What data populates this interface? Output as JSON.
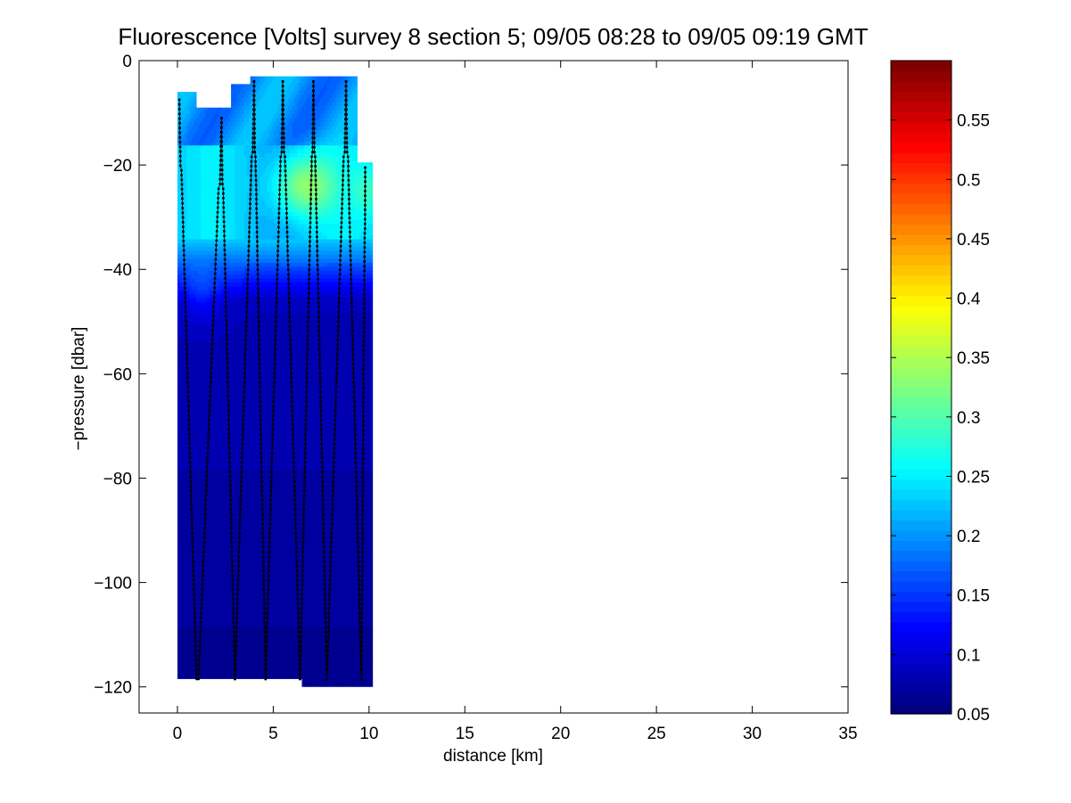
{
  "chart_data": {
    "type": "heatmap",
    "title": "Fluorescence [Volts] survey 8 section 5; 09/05 08:28 to 09/05 09:19 GMT",
    "xlabel": "distance [km]",
    "ylabel": "−pressure [dbar]",
    "xlim": [
      -2,
      35
    ],
    "ylim": [
      -125,
      0
    ],
    "xticks": [
      0,
      5,
      10,
      15,
      20,
      25,
      30,
      35
    ],
    "yticks": [
      0,
      -20,
      -40,
      -60,
      -80,
      -100,
      -120
    ],
    "xtick_labels": [
      "0",
      "5",
      "10",
      "15",
      "20",
      "25",
      "30",
      "35"
    ],
    "ytick_labels": [
      "0",
      "−20",
      "−40",
      "−60",
      "−80",
      "−100",
      "−120"
    ],
    "grid": false,
    "colormap": "jet",
    "colorbar": {
      "range": [
        0.05,
        0.6
      ],
      "ticks": [
        0.05,
        0.1,
        0.15,
        0.2,
        0.25,
        0.3,
        0.35,
        0.4,
        0.45,
        0.5,
        0.55
      ],
      "tick_labels": [
        "0.05",
        "0.1",
        "0.15",
        "0.2",
        "0.25",
        "0.3",
        "0.35",
        "0.4",
        "0.45",
        "0.5",
        "0.55"
      ],
      "levels": 64
    },
    "field_outline": [
      [
        0,
        -6
      ],
      [
        1,
        -6
      ],
      [
        1,
        -9
      ],
      [
        2.8,
        -9
      ],
      [
        2.8,
        -4.5
      ],
      [
        3.8,
        -4.5
      ],
      [
        3.8,
        -3
      ],
      [
        9.4,
        -3
      ],
      [
        9.4,
        -19.5
      ],
      [
        10.2,
        -19.5
      ],
      [
        10.2,
        -120
      ],
      [
        6.5,
        -120
      ],
      [
        6.5,
        -118.5
      ],
      [
        0,
        -118.5
      ]
    ],
    "field_description": "fluorescence values in volts: about 0.22 near the surface, a maximum of about 0.34 near 6.5 km at 24 dbar, dropping to about 0.07 below 45 dbar",
    "profiles": [
      {
        "x_top": 0.1,
        "y_top": -7.5,
        "x_bottom": 1.0,
        "y_bottom": -118.5
      },
      {
        "x_top": 2.3,
        "y_top": -11,
        "x_bottom": 1.1,
        "y_bottom": -118.5
      },
      {
        "x_top": 2.3,
        "y_top": -11,
        "x_bottom": 3.0,
        "y_bottom": -118.5
      },
      {
        "x_top": 4.0,
        "y_top": -4,
        "x_bottom": 3.0,
        "y_bottom": -118.5
      },
      {
        "x_top": 4.0,
        "y_top": -4,
        "x_bottom": 4.6,
        "y_bottom": -118.5
      },
      {
        "x_top": 5.5,
        "y_top": -4,
        "x_bottom": 4.6,
        "y_bottom": -118.5
      },
      {
        "x_top": 5.5,
        "y_top": -4,
        "x_bottom": 6.4,
        "y_bottom": -118.5
      },
      {
        "x_top": 7.1,
        "y_top": -4,
        "x_bottom": 6.4,
        "y_bottom": -118.5
      },
      {
        "x_top": 7.1,
        "y_top": -4,
        "x_bottom": 7.8,
        "y_bottom": -118.5
      },
      {
        "x_top": 8.8,
        "y_top": -4,
        "x_bottom": 7.8,
        "y_bottom": -118.5
      },
      {
        "x_top": 8.8,
        "y_top": -4,
        "x_bottom": 9.6,
        "y_bottom": -118.5
      },
      {
        "x_top": 9.8,
        "y_top": -20.5,
        "x_bottom": 9.6,
        "y_bottom": -118.5
      }
    ],
    "sample_spacing_dbar": 0.9
  }
}
